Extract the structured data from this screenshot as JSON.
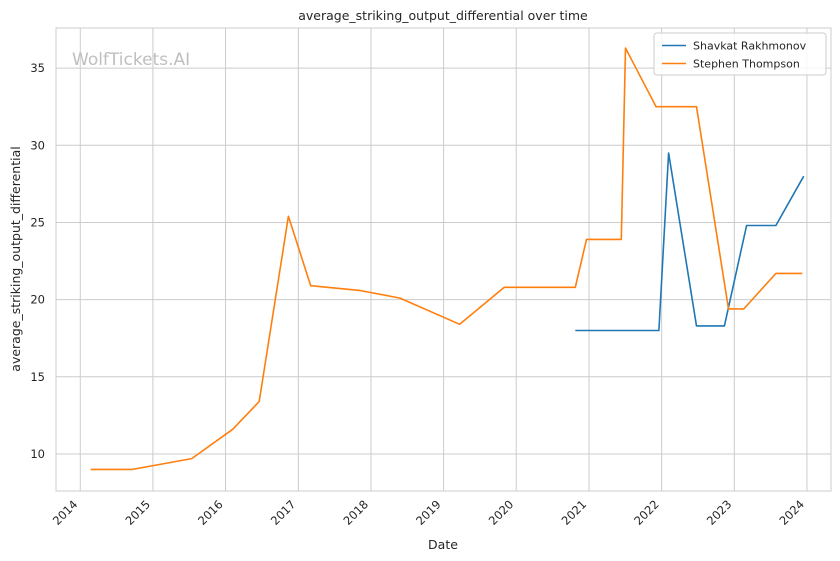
{
  "chart_data": {
    "type": "line",
    "title": "average_striking_output_differential over time",
    "xlabel": "Date",
    "ylabel": "average_striking_output_differential",
    "watermark": "WolfTickets.AI",
    "x_ticks": [
      "2014",
      "2015",
      "2016",
      "2017",
      "2018",
      "2019",
      "2020",
      "2021",
      "2022",
      "2023",
      "2024"
    ],
    "y_ticks": [
      10,
      15,
      20,
      25,
      30,
      35
    ],
    "xlim": [
      "2013-09-01",
      "2024-05-01"
    ],
    "ylim": [
      7.6,
      37.6
    ],
    "grid": true,
    "legend_position": "top-right",
    "series": [
      {
        "name": "Shavkat Rakhmonov",
        "color": "#1f77b4",
        "points": [
          [
            "2020-10-24",
            18.0
          ],
          [
            "2021-12-18",
            18.0
          ],
          [
            "2022-02-05",
            29.5
          ],
          [
            "2022-06-25",
            18.3
          ],
          [
            "2022-11-12",
            18.3
          ],
          [
            "2023-03-04",
            24.8
          ],
          [
            "2023-07-29",
            24.8
          ],
          [
            "2023-12-16",
            28.0
          ]
        ]
      },
      {
        "name": "Stephen Thompson",
        "color": "#ff7f0e",
        "points": [
          [
            "2014-02-22",
            9.0
          ],
          [
            "2014-09-20",
            9.0
          ],
          [
            "2015-07-15",
            9.7
          ],
          [
            "2016-02-06",
            11.6
          ],
          [
            "2016-06-18",
            13.4
          ],
          [
            "2016-11-12",
            25.4
          ],
          [
            "2017-03-04",
            20.9
          ],
          [
            "2017-11-04",
            20.6
          ],
          [
            "2018-05-27",
            20.1
          ],
          [
            "2019-03-23",
            18.4
          ],
          [
            "2019-11-02",
            20.8
          ],
          [
            "2020-10-24",
            20.8
          ],
          [
            "2020-12-19",
            23.9
          ],
          [
            "2021-06-12",
            23.9
          ],
          [
            "2021-07-03",
            36.3
          ],
          [
            "2021-12-04",
            32.5
          ],
          [
            "2022-06-25",
            32.5
          ],
          [
            "2022-12-03",
            19.4
          ],
          [
            "2023-02-18",
            19.4
          ],
          [
            "2023-07-29",
            21.7
          ],
          [
            "2023-12-09",
            21.7
          ]
        ]
      }
    ]
  }
}
